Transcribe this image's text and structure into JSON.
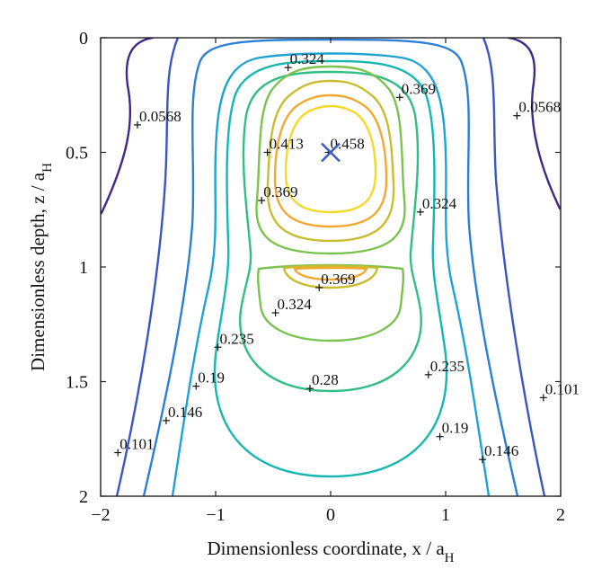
{
  "chart_data": {
    "type": "contour",
    "xlabel": "Dimensionless coordinate, x / a",
    "xlabel_sub": "H",
    "ylabel": "Dimensionless depth, z / a",
    "ylabel_sub": "H",
    "xlim": [
      -2,
      2
    ],
    "ylim": [
      0,
      2
    ],
    "y_inverted": true,
    "x_ticks": [
      {
        "value": -2,
        "label": "−2"
      },
      {
        "value": -1,
        "label": "−1"
      },
      {
        "value": 0,
        "label": "0"
      },
      {
        "value": 1,
        "label": "1"
      },
      {
        "value": 2,
        "label": "2"
      }
    ],
    "y_ticks": [
      {
        "value": 0,
        "label": "0"
      },
      {
        "value": 0.5,
        "label": "0.5"
      },
      {
        "value": 1,
        "label": "1"
      },
      {
        "value": 1.5,
        "label": "1.5"
      },
      {
        "value": 2,
        "label": "2"
      }
    ],
    "levels": [
      {
        "value": 0.0568,
        "color": "#3e2a86"
      },
      {
        "value": 0.101,
        "color": "#3b55c2"
      },
      {
        "value": 0.146,
        "color": "#2b7fd6"
      },
      {
        "value": 0.19,
        "color": "#1ea3d2"
      },
      {
        "value": 0.235,
        "color": "#15b7b0"
      },
      {
        "value": 0.28,
        "color": "#30bd86"
      },
      {
        "value": 0.324,
        "color": "#7cc24e"
      },
      {
        "value": 0.369,
        "color": "#c9bd2f"
      },
      {
        "value": 0.413,
        "color": "#f3a830"
      },
      {
        "value": 0.458,
        "color": "#f5d92a"
      }
    ],
    "contour_labels": [
      {
        "text": "0.324",
        "x": -0.37,
        "z": 0.13
      },
      {
        "text": "0.369",
        "x": 0.6,
        "z": 0.26
      },
      {
        "text": "0.0568",
        "x": -1.68,
        "z": 0.38
      },
      {
        "text": "0.0568",
        "x": 1.62,
        "z": 0.34
      },
      {
        "text": "0.413",
        "x": -0.55,
        "z": 0.5
      },
      {
        "text": "0.458",
        "x": -0.02,
        "z": 0.5
      },
      {
        "text": "0.369",
        "x": -0.6,
        "z": 0.71
      },
      {
        "text": "0.324",
        "x": 0.78,
        "z": 0.76
      },
      {
        "text": "0.369",
        "x": -0.1,
        "z": 1.09
      },
      {
        "text": "0.324",
        "x": -0.48,
        "z": 1.2
      },
      {
        "text": "0.235",
        "x": -0.98,
        "z": 1.35
      },
      {
        "text": "0.235",
        "x": 0.85,
        "z": 1.47
      },
      {
        "text": "0.19",
        "x": -1.17,
        "z": 1.52
      },
      {
        "text": "0.28",
        "x": -0.18,
        "z": 1.53
      },
      {
        "text": "0.101",
        "x": 1.85,
        "z": 1.57
      },
      {
        "text": "0.146",
        "x": -1.43,
        "z": 1.67
      },
      {
        "text": "0.19",
        "x": 0.95,
        "z": 1.74
      },
      {
        "text": "0.101",
        "x": -1.85,
        "z": 1.81
      },
      {
        "text": "0.146",
        "x": 1.32,
        "z": 1.84
      }
    ],
    "max_marker": {
      "x": 0,
      "z": 0.5,
      "symbol": "×",
      "color": "#3d5fc4"
    }
  }
}
